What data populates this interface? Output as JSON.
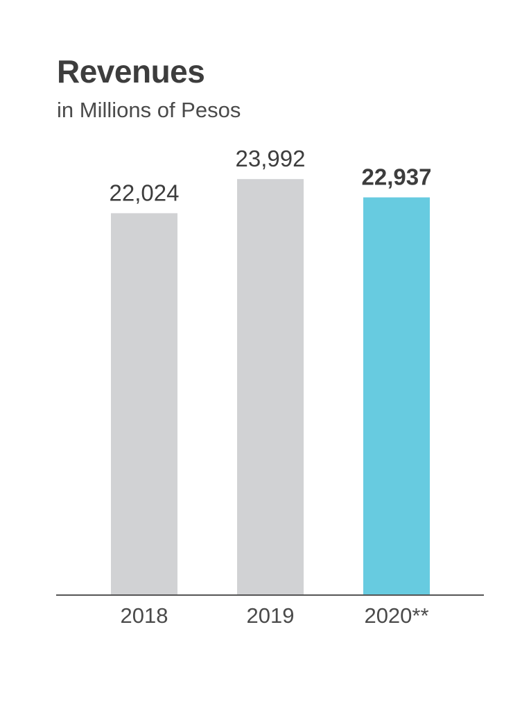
{
  "chart_data": {
    "type": "bar",
    "title": "Revenues",
    "subtitle": "in Millions of Pesos",
    "xlabel": "",
    "ylabel": "",
    "categories": [
      "2018",
      "2019",
      "2020**"
    ],
    "values": [
      22024,
      23992,
      22937
    ],
    "value_labels": [
      "22,024",
      "23,992",
      "22,937"
    ],
    "ylim": [
      0,
      28000
    ],
    "grid": false,
    "colors": [
      "#d1d2d4",
      "#d1d2d4",
      "#67cbe0"
    ],
    "bold_value_index": 2,
    "axis_color": "#555555",
    "label_color": "#4a4a4a"
  }
}
